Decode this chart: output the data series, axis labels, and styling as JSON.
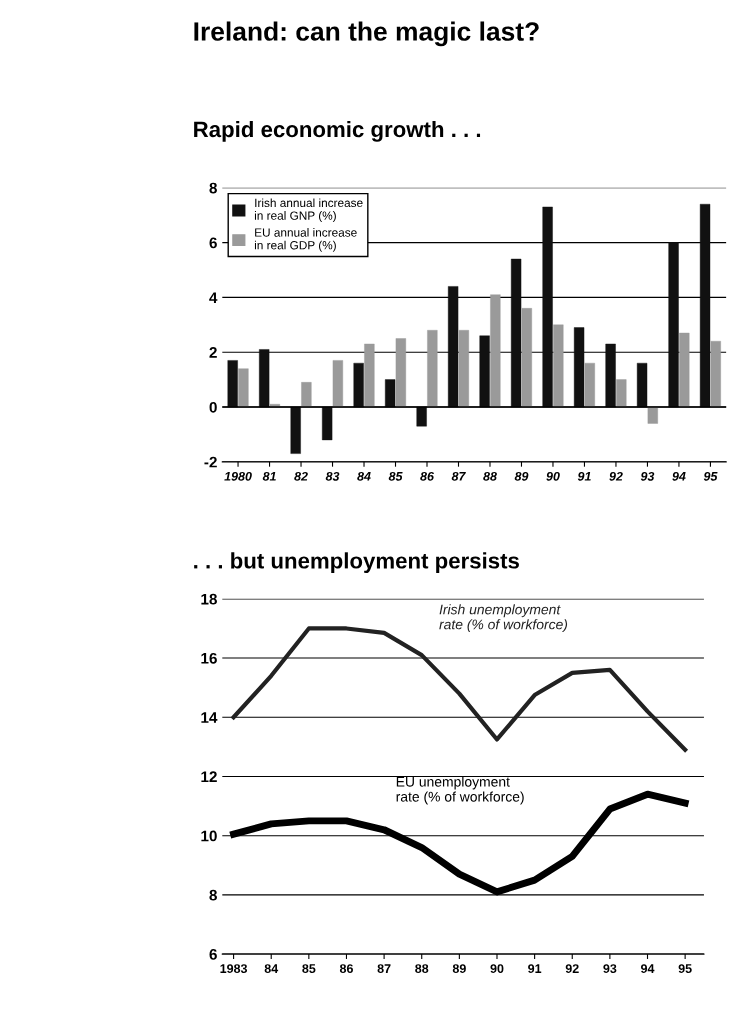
{
  "chart_data": [
    {
      "type": "bar",
      "title": "Ireland: can the magic last?",
      "subtitle": "Rapid economic growth . . .",
      "categories": [
        "1980",
        "81",
        "82",
        "83",
        "84",
        "85",
        "86",
        "87",
        "88",
        "89",
        "90",
        "91",
        "92",
        "93",
        "94",
        "95"
      ],
      "series": [
        {
          "name": "Irish annual increase in real GNP (%)",
          "color": "#111111",
          "values": [
            1.7,
            2.1,
            -1.7,
            -1.2,
            1.6,
            1.0,
            -0.7,
            4.4,
            2.6,
            5.4,
            7.3,
            2.9,
            2.3,
            1.6,
            6.0,
            7.4
          ]
        },
        {
          "name": "EU annual increase in real GDP (%)",
          "color": "#9a9a9a",
          "values": [
            1.4,
            0.1,
            0.9,
            1.7,
            2.3,
            2.5,
            2.8,
            2.8,
            4.1,
            3.6,
            3.0,
            1.6,
            1.0,
            -0.6,
            2.7,
            2.4
          ]
        }
      ],
      "ylim": [
        -2,
        8
      ],
      "yticks": [
        -2,
        0,
        2,
        4,
        6,
        8
      ],
      "grid": "y",
      "legend": "top left"
    },
    {
      "type": "line",
      "title": ". . . but unemployment persists",
      "categories": [
        "1983",
        "84",
        "85",
        "86",
        "87",
        "88",
        "89",
        "90",
        "91",
        "92",
        "93",
        "94",
        "95"
      ],
      "series": [
        {
          "name": "Irish unemployment rate (% of workforce)",
          "color": "#222222",
          "values": [
            14.0,
            15.4,
            17.0,
            17.0,
            16.85,
            16.1,
            14.8,
            13.25,
            14.75,
            15.5,
            15.6,
            14.2,
            12.9
          ]
        },
        {
          "name": "EU unemployment rate (% of workforce)",
          "color": "#000000",
          "values": [
            10.05,
            10.4,
            10.5,
            10.5,
            10.2,
            9.6,
            8.7,
            8.1,
            8.5,
            9.3,
            10.9,
            11.4,
            11.1
          ]
        }
      ],
      "ylim": [
        6,
        18
      ],
      "yticks": [
        6,
        8,
        10,
        12,
        14,
        16,
        18
      ],
      "grid": "y",
      "legend": false
    }
  ]
}
